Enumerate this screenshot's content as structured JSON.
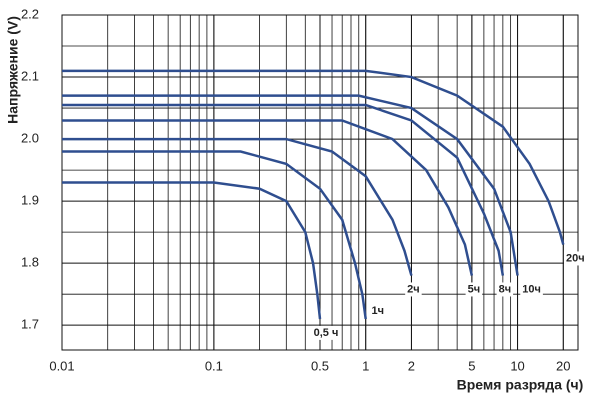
{
  "chart_data": {
    "type": "line",
    "x_label": "Время разряда (ч)",
    "y_label": "Напряжение (V)",
    "xscale": "log",
    "grid": true,
    "color": "#2f4e8f",
    "xlim": [
      0.01,
      25
    ],
    "ylim": [
      1.66,
      2.2
    ],
    "xticks": [
      0.01,
      0.1,
      0.5,
      1,
      2,
      5,
      10,
      20
    ],
    "yticks": [
      1.7,
      1.8,
      1.9,
      {
        "value": 2,
        "label": "2.0"
      },
      2.1,
      2.2
    ],
    "series": [
      {
        "name": "0,5 ч",
        "color": "#2f4e8f",
        "x": [
          0.01,
          0.1,
          0.2,
          0.3,
          0.4,
          0.45,
          0.48,
          0.5
        ],
        "values": [
          1.93,
          1.93,
          1.92,
          1.9,
          1.85,
          1.8,
          1.75,
          1.71
        ]
      },
      {
        "name": "1ч",
        "color": "#2f4e8f",
        "x": [
          0.01,
          0.15,
          0.3,
          0.5,
          0.7,
          0.85,
          0.95,
          1
        ],
        "values": [
          1.98,
          1.98,
          1.96,
          1.92,
          1.87,
          1.8,
          1.75,
          1.71
        ]
      },
      {
        "name": "2ч",
        "color": "#2f4e8f",
        "x": [
          0.01,
          0.3,
          0.6,
          1,
          1.5,
          1.8,
          2
        ],
        "values": [
          2,
          2,
          1.98,
          1.94,
          1.87,
          1.82,
          1.78
        ]
      },
      {
        "name": "5ч",
        "color": "#2f4e8f",
        "x": [
          0.01,
          0.7,
          1.5,
          2.5,
          3.5,
          4.5,
          5
        ],
        "values": [
          2.03,
          2.03,
          2,
          1.95,
          1.89,
          1.83,
          1.78
        ]
      },
      {
        "name": "8ч",
        "color": "#2f4e8f",
        "x": [
          0.01,
          1,
          2,
          4,
          6,
          7.5,
          8
        ],
        "values": [
          2.055,
          2.055,
          2.03,
          1.97,
          1.88,
          1.82,
          1.78
        ]
      },
      {
        "name": "10ч",
        "color": "#2f4e8f",
        "x": [
          0.01,
          0.9,
          2,
          4,
          7,
          9,
          10
        ],
        "values": [
          2.07,
          2.07,
          2.05,
          2,
          1.92,
          1.85,
          1.78
        ]
      },
      {
        "name": "20ч",
        "color": "#2f4e8f",
        "x": [
          0.01,
          1,
          2,
          4,
          8,
          12,
          16,
          19,
          20
        ],
        "values": [
          2.11,
          2.11,
          2.1,
          2.07,
          2.02,
          1.96,
          1.9,
          1.85,
          1.83
        ]
      }
    ]
  }
}
